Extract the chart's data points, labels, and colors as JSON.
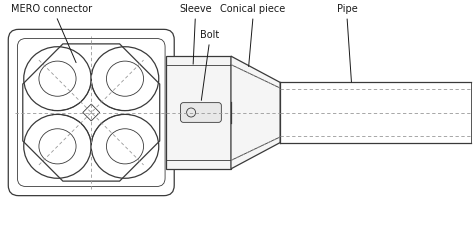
{
  "background_color": "#ffffff",
  "line_color": "#3a3a3a",
  "dashed_color": "#999999",
  "figsize": [
    4.74,
    2.25
  ],
  "dpi": 100,
  "labels": {
    "mero": "MERO connector",
    "sleeve": "Sleeve",
    "bolt": "Bolt",
    "conical": "Conical piece",
    "pipe": "Pipe"
  }
}
